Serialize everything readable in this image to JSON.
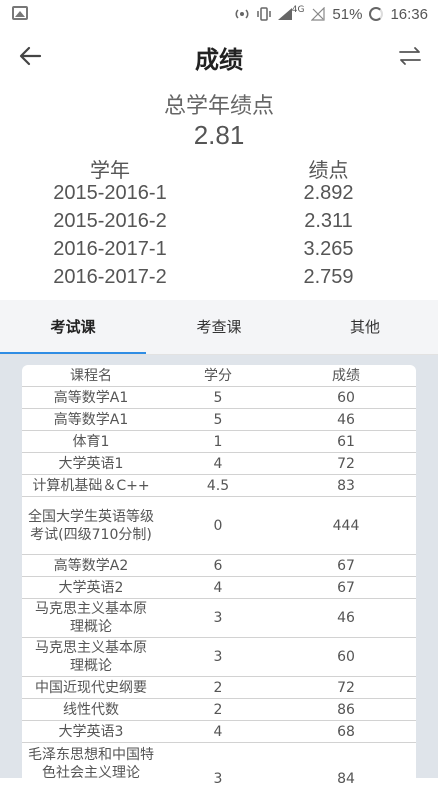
{
  "status_bar": {
    "network_label": "4G",
    "battery_percent": "51%",
    "time": "16:36"
  },
  "appbar": {
    "title": "成绩"
  },
  "summary": {
    "title": "总学年绩点",
    "value": "2.81",
    "col_year": "学年",
    "col_gpa": "绩点",
    "years": [
      {
        "year": "2015-2016-1",
        "gpa": "2.892"
      },
      {
        "year": "2015-2016-2",
        "gpa": "2.311"
      },
      {
        "year": "2016-2017-1",
        "gpa": "3.265"
      },
      {
        "year": "2016-2017-2",
        "gpa": "2.759"
      }
    ]
  },
  "tabs": [
    {
      "label": "考试课"
    },
    {
      "label": "考查课"
    },
    {
      "label": "其他"
    }
  ],
  "table": {
    "headers": [
      "课程名",
      "学分",
      "成绩"
    ],
    "rows": [
      {
        "name": "高等数学A1",
        "credit": "5",
        "score": "60"
      },
      {
        "name": "高等数学A1",
        "credit": "5",
        "score": "46"
      },
      {
        "name": "体育1",
        "credit": "1",
        "score": "61"
      },
      {
        "name": "大学英语1",
        "credit": "4",
        "score": "72"
      },
      {
        "name": "计算机基础＆C++",
        "credit": "4.5",
        "score": "83"
      },
      {
        "name": "全国大学生英语等级考试(四级710分制)",
        "credit": "0",
        "score": "444"
      },
      {
        "name": "高等数学A2",
        "credit": "6",
        "score": "67"
      },
      {
        "name": "大学英语2",
        "credit": "4",
        "score": "67"
      },
      {
        "name": "马克思主义基本原理概论",
        "credit": "3",
        "score": "46"
      },
      {
        "name": "马克思主义基本原理概论",
        "credit": "3",
        "score": "60"
      },
      {
        "name": "中国近现代史纲要",
        "credit": "2",
        "score": "72"
      },
      {
        "name": "线性代数",
        "credit": "2",
        "score": "86"
      },
      {
        "name": "大学英语3",
        "credit": "4",
        "score": "68"
      },
      {
        "name": "毛泽东思想和中国特色社会主义理论",
        "credit": "3",
        "score": "84"
      }
    ]
  },
  "colors": {
    "tab_indicator": "#2f8de4",
    "table_background": "#dfe4ea"
  }
}
